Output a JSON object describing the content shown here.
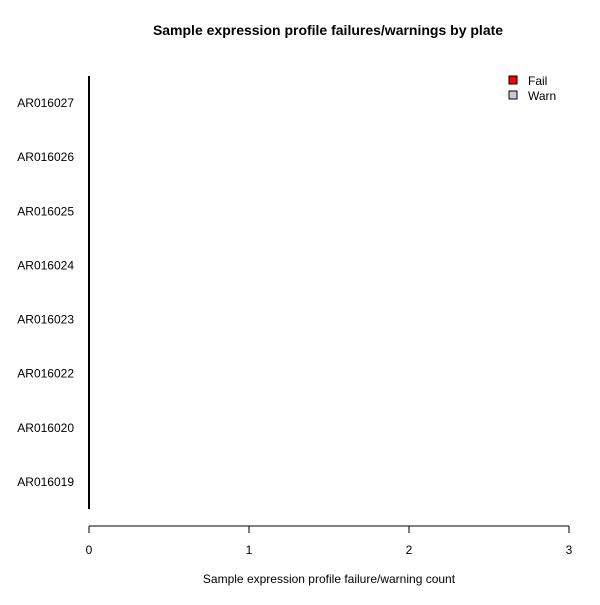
{
  "chart_data": {
    "type": "bar",
    "orientation": "horizontal",
    "stacked": true,
    "title": "Sample expression profile failures/warnings by plate",
    "xlabel": "Sample expression profile failure/warning count",
    "ylabel": "",
    "xlim": [
      0,
      3
    ],
    "x_ticks": [
      "0",
      "1",
      "2",
      "3"
    ],
    "categories": [
      "AR016019",
      "AR016020",
      "AR016022",
      "AR016023",
      "AR016024",
      "AR016025",
      "AR016026",
      "AR016027"
    ],
    "series": [
      {
        "name": "Fail",
        "color": "#ff0000",
        "values": [
          0,
          0,
          0,
          0,
          0,
          0,
          0,
          0
        ]
      },
      {
        "name": "Warn",
        "color": "#c8c8d8",
        "values": [
          0,
          0,
          0,
          0,
          0,
          0,
          0,
          0
        ]
      }
    ],
    "legend": "top-right",
    "grid": false
  }
}
